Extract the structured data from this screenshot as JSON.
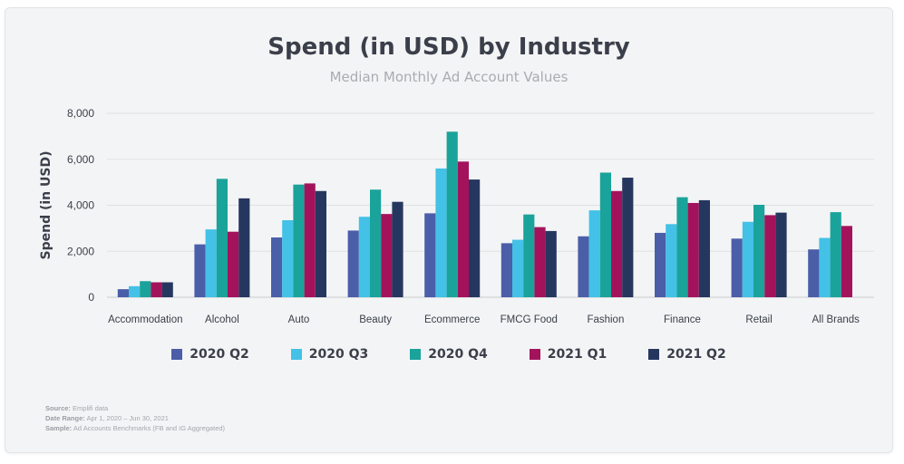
{
  "chart_data": {
    "type": "bar",
    "title": "Spend (in USD) by Industry",
    "subtitle": "Median Monthly Ad Account Values",
    "ylabel": "Spend (in USD)",
    "xlabel": "",
    "ylim": [
      0,
      8000
    ],
    "yticks": [
      "0",
      "2,000",
      "4,000",
      "6,000",
      "8,000"
    ],
    "grid": true,
    "legend_position": "bottom",
    "categories": [
      "Accommodation",
      "Alcohol",
      "Auto",
      "Beauty",
      "Ecommerce",
      "FMCG Food",
      "Fashion",
      "Finance",
      "Retail",
      "All Brands"
    ],
    "series": [
      {
        "name": "2020 Q2",
        "color": "#4b5ea8",
        "values": [
          350,
          2300,
          2600,
          2900,
          3650,
          2350,
          2650,
          2800,
          2550,
          2080
        ]
      },
      {
        "name": "2020 Q3",
        "color": "#43c1e6",
        "values": [
          480,
          2950,
          3350,
          3500,
          5600,
          2500,
          3780,
          3180,
          3280,
          2580
        ]
      },
      {
        "name": "2020 Q4",
        "color": "#1aa39a",
        "values": [
          700,
          5150,
          4900,
          4680,
          7200,
          3600,
          5420,
          4350,
          4020,
          3700
        ]
      },
      {
        "name": "2021 Q1",
        "color": "#a3135c",
        "values": [
          650,
          2850,
          4950,
          3620,
          5900,
          3050,
          4620,
          4100,
          3570,
          3100
        ]
      },
      {
        "name": "2021 Q2",
        "color": "#26375f",
        "values": [
          650,
          4300,
          4620,
          4150,
          5120,
          2880,
          5200,
          4220,
          3680,
          null
        ]
      }
    ]
  },
  "footnotes": [
    {
      "label": "Source:",
      "text": "Emplifi data"
    },
    {
      "label": "Date Range:",
      "text": "Apr 1, 2020 – Jun 30, 2021"
    },
    {
      "label": "Sample:",
      "text": "Ad Accounts Benchmarks (FB and IG Aggregated)"
    }
  ]
}
